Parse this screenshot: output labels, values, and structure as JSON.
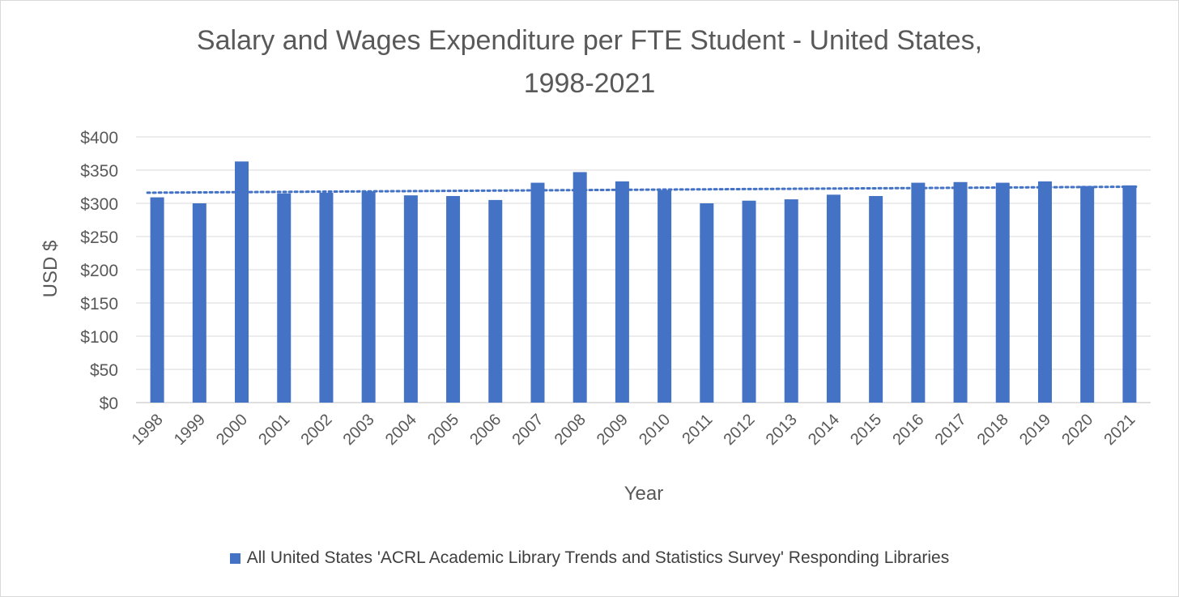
{
  "chart_data": {
    "type": "bar",
    "title_line1": "Salary and Wages Expenditure per FTE Student - United States,",
    "title_line2": "1998-2021",
    "xlabel": "Year",
    "ylabel": "USD $",
    "ylim": [
      0,
      400
    ],
    "ytick_values": [
      0,
      50,
      100,
      150,
      200,
      250,
      300,
      350,
      400
    ],
    "ytick_labels": [
      "$0",
      "$50",
      "$100",
      "$150",
      "$200",
      "$250",
      "$300",
      "$350",
      "$400"
    ],
    "categories": [
      "1998",
      "1999",
      "2000",
      "2001",
      "2002",
      "2003",
      "2004",
      "2005",
      "2006",
      "2007",
      "2008",
      "2009",
      "2010",
      "2011",
      "2012",
      "2013",
      "2014",
      "2015",
      "2016",
      "2017",
      "2018",
      "2019",
      "2020",
      "2021"
    ],
    "series": [
      {
        "name": "All United States 'ACRL Academic Library Trends and Statistics Survey' Responding Libraries",
        "color": "#4472c4",
        "values": [
          309,
          300,
          363,
          315,
          316,
          318,
          312,
          311,
          305,
          331,
          347,
          333,
          320,
          300,
          304,
          306,
          313,
          311,
          331,
          332,
          331,
          333,
          326,
          327
        ]
      }
    ],
    "trendline": {
      "style": "dotted",
      "color": "#4472c4",
      "start_value": 316,
      "end_value": 325
    },
    "grid": true,
    "legend_position": "bottom"
  }
}
